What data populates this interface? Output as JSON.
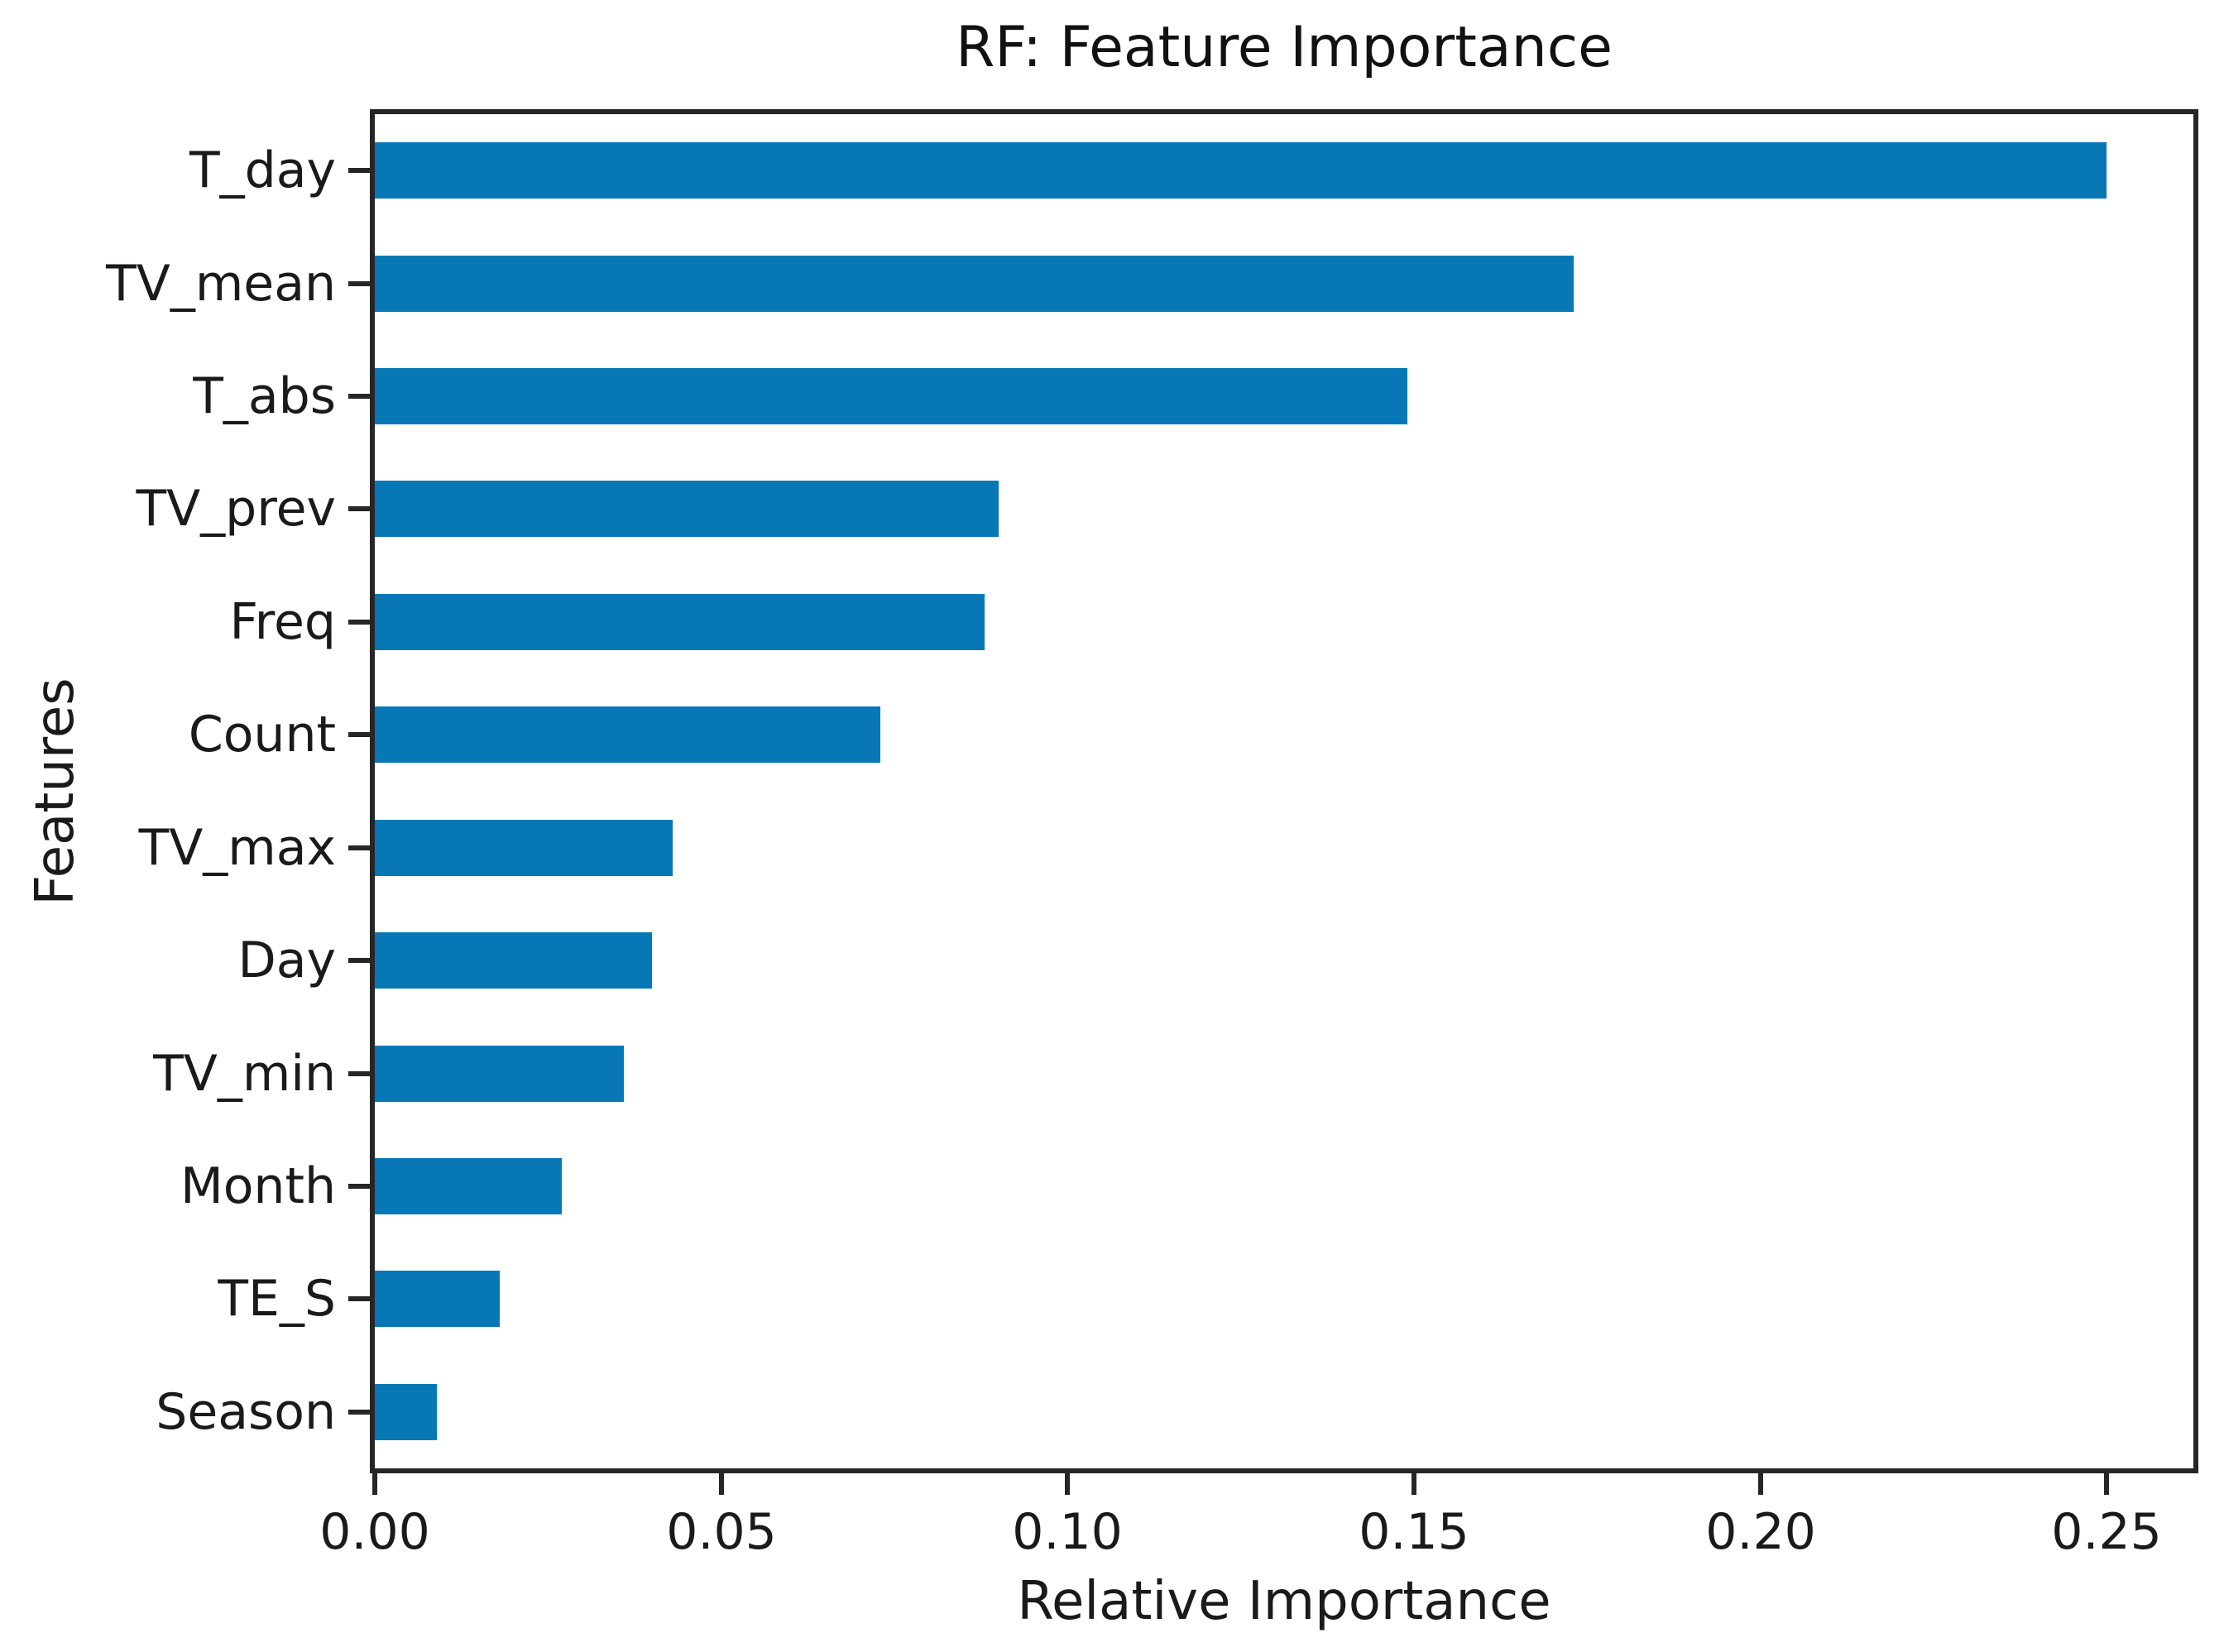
{
  "chart_data": {
    "type": "bar",
    "orientation": "horizontal",
    "title": "RF: Feature Importance",
    "xlabel": "Relative Importance",
    "ylabel": "Features",
    "categories": [
      "T_day",
      "TV_mean",
      "T_abs",
      "TV_prev",
      "Freq",
      "Count",
      "TV_max",
      "Day",
      "TV_min",
      "Month",
      "TE_S",
      "Season"
    ],
    "values": [
      0.25,
      0.173,
      0.149,
      0.09,
      0.088,
      0.073,
      0.043,
      0.04,
      0.036,
      0.027,
      0.018,
      0.009
    ],
    "xlim": [
      0,
      0.2625
    ],
    "x_ticks": [
      0.0,
      0.05,
      0.1,
      0.15,
      0.2,
      0.25
    ],
    "x_tick_labels": [
      "0.00",
      "0.05",
      "0.10",
      "0.15",
      "0.20",
      "0.25"
    ],
    "bar_color": "#0877b6",
    "grid": false,
    "legend": null
  }
}
